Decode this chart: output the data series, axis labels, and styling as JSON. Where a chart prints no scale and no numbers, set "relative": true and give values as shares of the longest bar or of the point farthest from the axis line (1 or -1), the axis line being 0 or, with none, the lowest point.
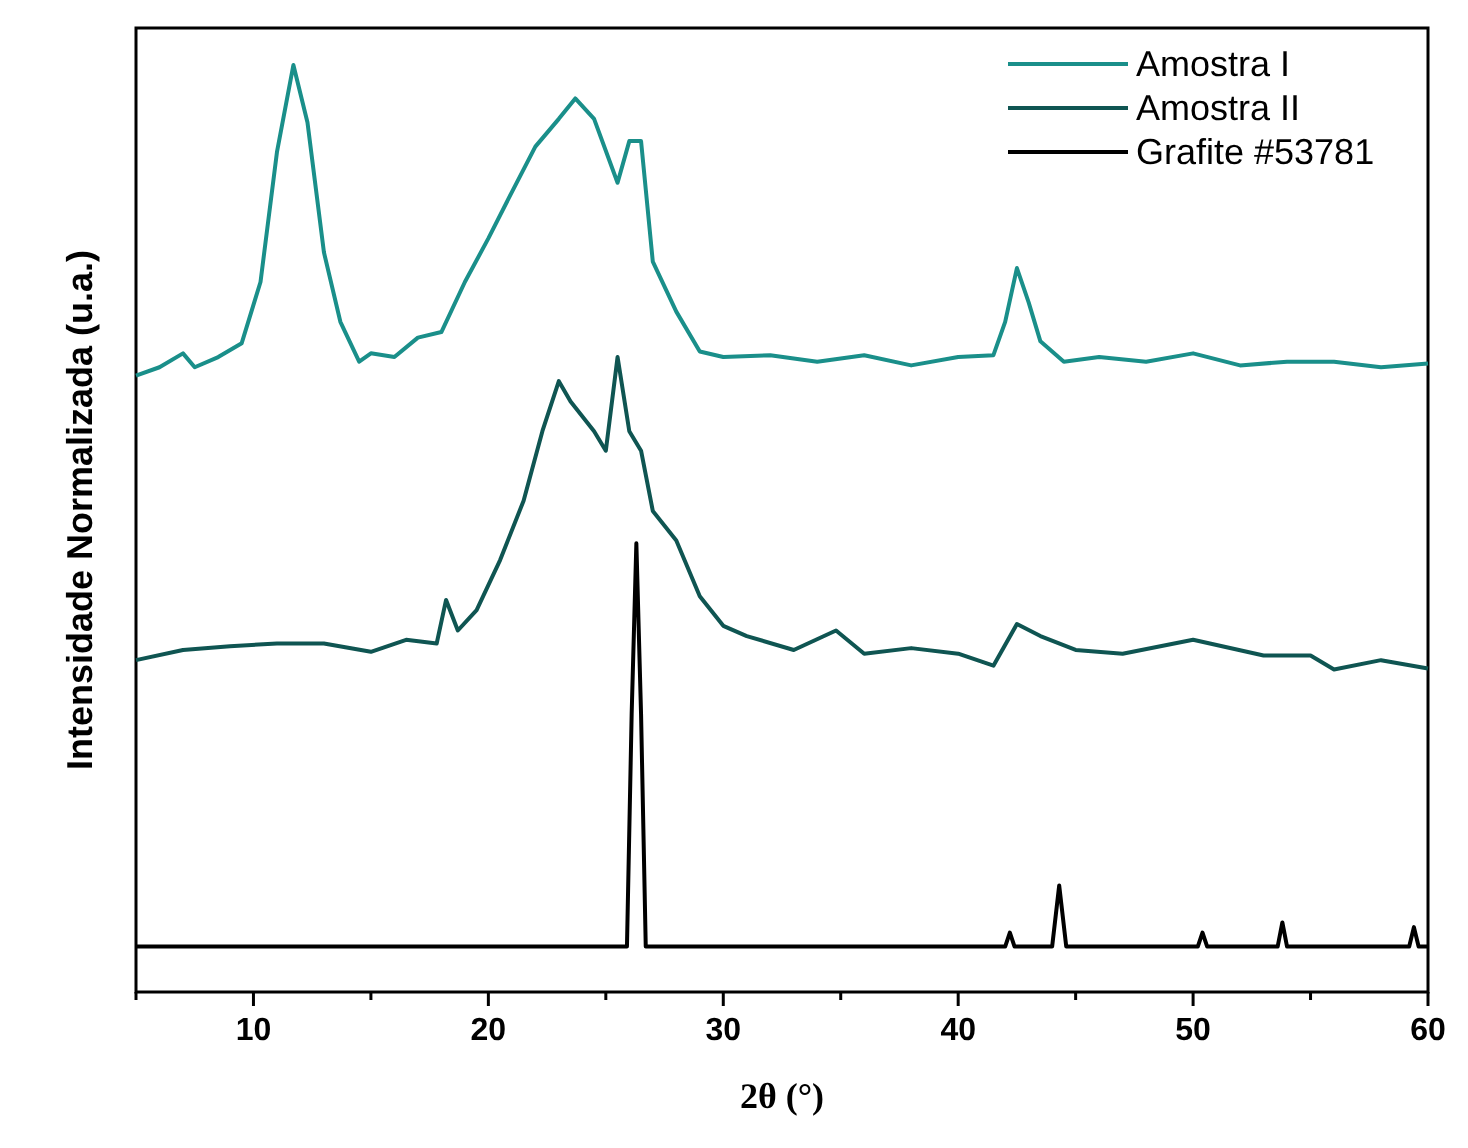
{
  "chart_data": {
    "type": "line",
    "relative": true,
    "xlabel": "2θ (°)",
    "ylabel": "Intensidade Normalizada (u.a.)",
    "xlim": [
      5,
      60
    ],
    "xticks": [
      {
        "value": 5,
        "label": null
      },
      10,
      {
        "value": 15,
        "label": null
      },
      20,
      {
        "value": 25,
        "label": null
      },
      30,
      {
        "value": 35,
        "label": null
      },
      40,
      {
        "value": 45,
        "label": null
      },
      50,
      {
        "value": 55,
        "label": null
      },
      60
    ],
    "legend": "top right",
    "grid": false,
    "marker": "none",
    "line_style": "solid",
    "series": [
      {
        "name": "Amostra I",
        "color": "#1a8f8a",
        "x": [
          5,
          6,
          7,
          7.5,
          8.5,
          9.5,
          10.3,
          11,
          11.7,
          12.3,
          13,
          13.7,
          14.5,
          15,
          16,
          17,
          18,
          19,
          20,
          21,
          22,
          23,
          23.7,
          24.5,
          25.5,
          26,
          26.5,
          27,
          28,
          29,
          30,
          32,
          34,
          36,
          38,
          40,
          41.5,
          42,
          42.5,
          43,
          43.5,
          44.5,
          46,
          48,
          50,
          52,
          54,
          56,
          58,
          60
        ],
        "values": [
          0.665,
          0.674,
          0.689,
          0.674,
          0.685,
          0.7,
          0.766,
          0.906,
          1.0,
          0.938,
          0.798,
          0.723,
          0.68,
          0.689,
          0.685,
          0.706,
          0.712,
          0.766,
          0.813,
          0.863,
          0.912,
          0.942,
          0.964,
          0.942,
          0.873,
          0.918,
          0.918,
          0.788,
          0.734,
          0.691,
          0.685,
          0.687,
          0.68,
          0.687,
          0.676,
          0.685,
          0.687,
          0.723,
          0.781,
          0.744,
          0.702,
          0.68,
          0.685,
          0.68,
          0.689,
          0.676,
          0.68,
          0.68,
          0.674,
          0.678
        ]
      },
      {
        "name": "Amostra II",
        "color": "#0f5552",
        "x": [
          5,
          7,
          9,
          11,
          13,
          15,
          16.5,
          17.8,
          18.2,
          18.7,
          19.5,
          20.5,
          21.5,
          22.3,
          23,
          23.5,
          24.5,
          25,
          25.5,
          26,
          26.5,
          27,
          28,
          29,
          30,
          31,
          33,
          34.8,
          36,
          38,
          40,
          41.5,
          42.5,
          43.5,
          45,
          47,
          50,
          53,
          55,
          56,
          58,
          60
        ],
        "values": [
          0.358,
          0.369,
          0.373,
          0.376,
          0.376,
          0.367,
          0.38,
          0.376,
          0.423,
          0.39,
          0.412,
          0.466,
          0.53,
          0.605,
          0.659,
          0.637,
          0.605,
          0.584,
          0.685,
          0.605,
          0.584,
          0.519,
          0.487,
          0.427,
          0.395,
          0.384,
          0.369,
          0.39,
          0.365,
          0.371,
          0.365,
          0.352,
          0.397,
          0.384,
          0.369,
          0.365,
          0.38,
          0.363,
          0.363,
          0.348,
          0.358,
          0.349
        ]
      },
      {
        "name": "Grafite #53781",
        "color": "#000000",
        "x": [
          5,
          25.9,
          26.1,
          26.3,
          26.5,
          26.7,
          42,
          42.2,
          42.4,
          44,
          44.3,
          44.6,
          50.2,
          50.4,
          50.6,
          53.6,
          53.8,
          54,
          59.2,
          59.4,
          59.6,
          60
        ],
        "values": [
          0.049,
          0.049,
          0.3,
          0.484,
          0.3,
          0.049,
          0.049,
          0.064,
          0.049,
          0.049,
          0.115,
          0.049,
          0.049,
          0.064,
          0.049,
          0.049,
          0.075,
          0.049,
          0.049,
          0.07,
          0.049,
          0.049
        ]
      }
    ]
  }
}
